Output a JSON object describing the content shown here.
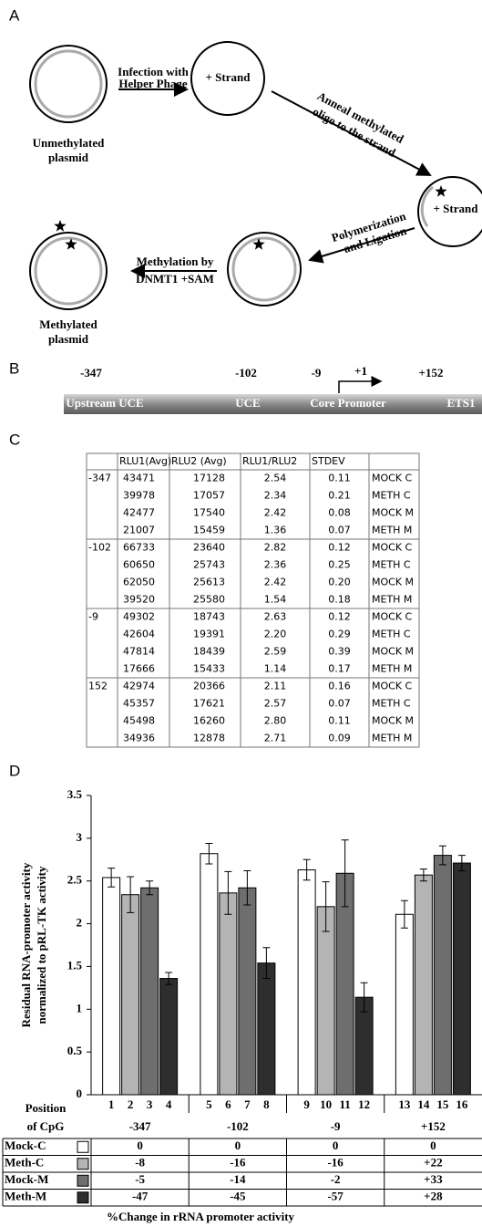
{
  "panel_labels": [
    "A",
    "B",
    "C",
    "D"
  ],
  "diagram": {
    "steps": [
      {
        "line1": "Infection with",
        "line2": "Helper Phage"
      },
      {
        "line1": "Anneal methylated",
        "line2": "oligo to the strand"
      },
      {
        "line1": "Polymerization",
        "line2": "and Ligation"
      },
      {
        "line1": "Methylation by",
        "line2": "DNMT1 +SAM"
      }
    ],
    "strand_labels": [
      "+ Strand",
      "+ Strand"
    ],
    "plasmids": [
      {
        "line1": "Unmethylated",
        "line2": "plasmid"
      },
      {
        "line1": "Methylated",
        "line2": "plasmid"
      }
    ]
  },
  "promoter": {
    "positions": [
      "-347",
      "-102",
      "-9",
      "+1",
      "+152"
    ],
    "regions": [
      "Upstream UCE",
      "UCE",
      "Core Promoter",
      "ETS1"
    ]
  },
  "table": {
    "header": [
      "RLU1(Avg)",
      "RLU2 (Avg)",
      "RLU1/RLU2",
      "STDEV"
    ],
    "groups": [
      {
        "position": "-347",
        "rows": [
          [
            "43471",
            "17128",
            "2.54",
            "0.11",
            "MOCK C"
          ],
          [
            "39978",
            "17057",
            "2.34",
            "0.21",
            "METH C"
          ],
          [
            "42477",
            "17540",
            "2.42",
            "0.08",
            "MOCK M"
          ],
          [
            "21007",
            "15459",
            "1.36",
            "0.07",
            "METH M"
          ]
        ]
      },
      {
        "position": "-102",
        "rows": [
          [
            "66733",
            "23640",
            "2.82",
            "0.12",
            "MOCK C"
          ],
          [
            "60650",
            "25743",
            "2.36",
            "0.25",
            "METH C"
          ],
          [
            "62050",
            "25613",
            "2.42",
            "0.20",
            "MOCK M"
          ],
          [
            "39520",
            "25580",
            "1.54",
            "0.18",
            "METH M"
          ]
        ]
      },
      {
        "position": "-9",
        "rows": [
          [
            "49302",
            "18743",
            "2.63",
            "0.12",
            "MOCK C"
          ],
          [
            "42604",
            "19391",
            "2.20",
            "0.29",
            "METH C"
          ],
          [
            "47814",
            "18439",
            "2.59",
            "0.39",
            "MOCK M"
          ],
          [
            "17666",
            "15433",
            "1.14",
            "0.17",
            "METH M"
          ]
        ]
      },
      {
        "position": "152",
        "rows": [
          [
            "42974",
            "20366",
            "2.11",
            "0.16",
            "MOCK C"
          ],
          [
            "45357",
            "17621",
            "2.57",
            "0.07",
            "METH C"
          ],
          [
            "45498",
            "16260",
            "2.80",
            "0.11",
            "MOCK M"
          ],
          [
            "34936",
            "12878",
            "2.71",
            "0.09",
            "METH M"
          ]
        ]
      }
    ]
  },
  "chart_data": {
    "type": "bar",
    "ylabel": [
      "Residual RNA-promoter activity",
      "normalized to pRL-TK activity"
    ],
    "x_label": [
      "Position",
      "of CpG"
    ],
    "categories": [
      "-347",
      "-102",
      "-9",
      "+152"
    ],
    "bar_labels": [
      1,
      2,
      3,
      4,
      5,
      6,
      7,
      8,
      9,
      10,
      11,
      12,
      13,
      14,
      15,
      16
    ],
    "series": [
      {
        "name": "Mock-C",
        "color": "#ffffff",
        "values": [
          2.54,
          2.82,
          2.63,
          2.11
        ],
        "errors": [
          0.11,
          0.12,
          0.12,
          0.16
        ]
      },
      {
        "name": "Meth-C",
        "color": "#b4b4b4",
        "values": [
          2.34,
          2.36,
          2.2,
          2.57
        ],
        "errors": [
          0.21,
          0.25,
          0.29,
          0.07
        ]
      },
      {
        "name": "Mock-M",
        "color": "#6e6e6e",
        "values": [
          2.42,
          2.42,
          2.59,
          2.8
        ],
        "errors": [
          0.08,
          0.2,
          0.39,
          0.11
        ]
      },
      {
        "name": "Meth-M",
        "color": "#2e2e2e",
        "values": [
          1.36,
          1.54,
          1.14,
          2.71
        ],
        "errors": [
          0.07,
          0.18,
          0.17,
          0.09
        ]
      }
    ],
    "ylim": [
      0,
      3.5
    ],
    "yticks": [
      0,
      0.5,
      1,
      1.5,
      2,
      2.5,
      3,
      3.5
    ]
  },
  "change_table": {
    "rows": [
      [
        "0",
        "0",
        "0",
        "0"
      ],
      [
        "-8",
        "-16",
        "-16",
        "+22"
      ],
      [
        "-5",
        "-14",
        "-2",
        "+33"
      ],
      [
        "-47",
        "-45",
        "-57",
        "+28"
      ]
    ],
    "caption": "%Change in rRNA promoter activity"
  }
}
